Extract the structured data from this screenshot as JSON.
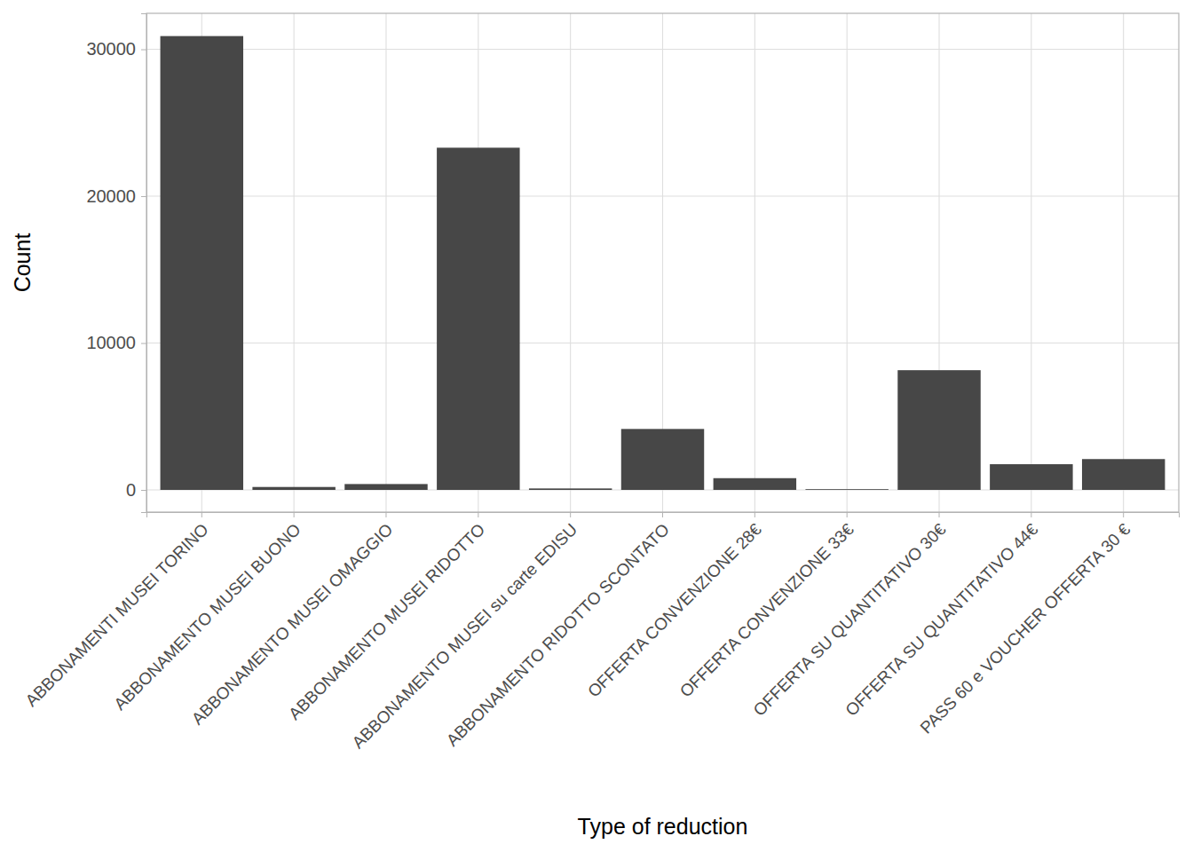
{
  "chart_data": {
    "type": "bar",
    "x_label": "Type of reduction",
    "y_label": "Count",
    "categories": [
      "ABBONAMENTI MUSEI TORINO",
      "ABBONAMENTO MUSEI BUONO",
      "ABBONAMENTO MUSEI OMAGGIO",
      "ABBONAMENTO MUSEI RIDOTTO",
      "ABBONAMENTO MUSEI su carte EDISU",
      "ABBONAMENTO RIDOTTO SCONTATO",
      "OFFERTA CONVENZIONE 28€",
      "OFFERTA CONVENZIONE 33€",
      "OFFERTA SU QUANTITATIVO 30€",
      "OFFERTA SU QUANTITATIVO 44€",
      "PASS 60 e VOUCHER OFFERTA 30 €"
    ],
    "values": [
      30900,
      200,
      400,
      23300,
      100,
      4150,
      800,
      50,
      8150,
      1750,
      2100
    ],
    "color": "#474747",
    "ylim": [
      -1510,
      32450
    ],
    "yticks": [
      0,
      10000,
      20000,
      30000
    ],
    "grid": true
  }
}
